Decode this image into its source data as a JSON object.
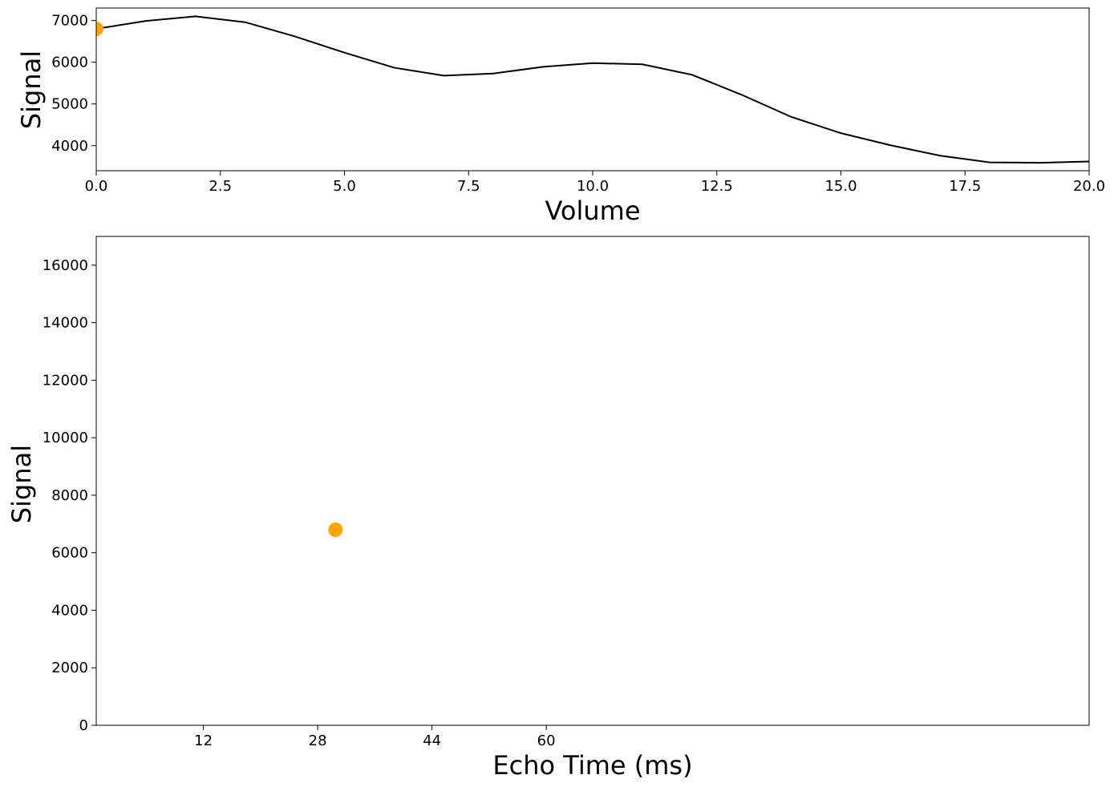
{
  "chart_data": [
    {
      "type": "line",
      "title": "",
      "xlabel": "Volume",
      "ylabel": "Signal",
      "xlim": [
        0,
        20
      ],
      "ylim": [
        3400,
        7300
      ],
      "xticks": [
        "0.0",
        "2.5",
        "5.0",
        "7.5",
        "10.0",
        "12.5",
        "15.0",
        "17.5",
        "20.0"
      ],
      "yticks": [
        "4000",
        "5000",
        "6000",
        "7000"
      ],
      "grid": false,
      "series": [
        {
          "color": "#000000",
          "x": [
            0,
            1,
            2,
            3,
            4,
            5,
            6,
            7,
            8,
            9,
            10,
            11,
            12,
            13,
            14,
            15,
            16,
            17,
            18,
            19,
            20
          ],
          "y": [
            6800,
            6990,
            7100,
            6960,
            6620,
            6230,
            5870,
            5680,
            5730,
            5890,
            5980,
            5950,
            5700,
            5220,
            4690,
            4300,
            4010,
            3760,
            3600,
            3590,
            3620
          ]
        }
      ],
      "markers": [
        {
          "x": 0,
          "y": 6800,
          "color": "#FFA500"
        }
      ]
    },
    {
      "type": "scatter",
      "title": "",
      "xlabel": "Echo Time (ms)",
      "ylabel": "Signal",
      "xlim": [
        -3,
        136
      ],
      "ylim": [
        0,
        17000
      ],
      "xticks": [
        "12",
        "28",
        "44",
        "60"
      ],
      "yticks": [
        "0",
        "2000",
        "4000",
        "6000",
        "8000",
        "10000",
        "12000",
        "14000",
        "16000"
      ],
      "grid": false,
      "series": [
        {
          "color": "#FFA500",
          "x": [
            30.5
          ],
          "y": [
            6800
          ]
        }
      ]
    }
  ]
}
